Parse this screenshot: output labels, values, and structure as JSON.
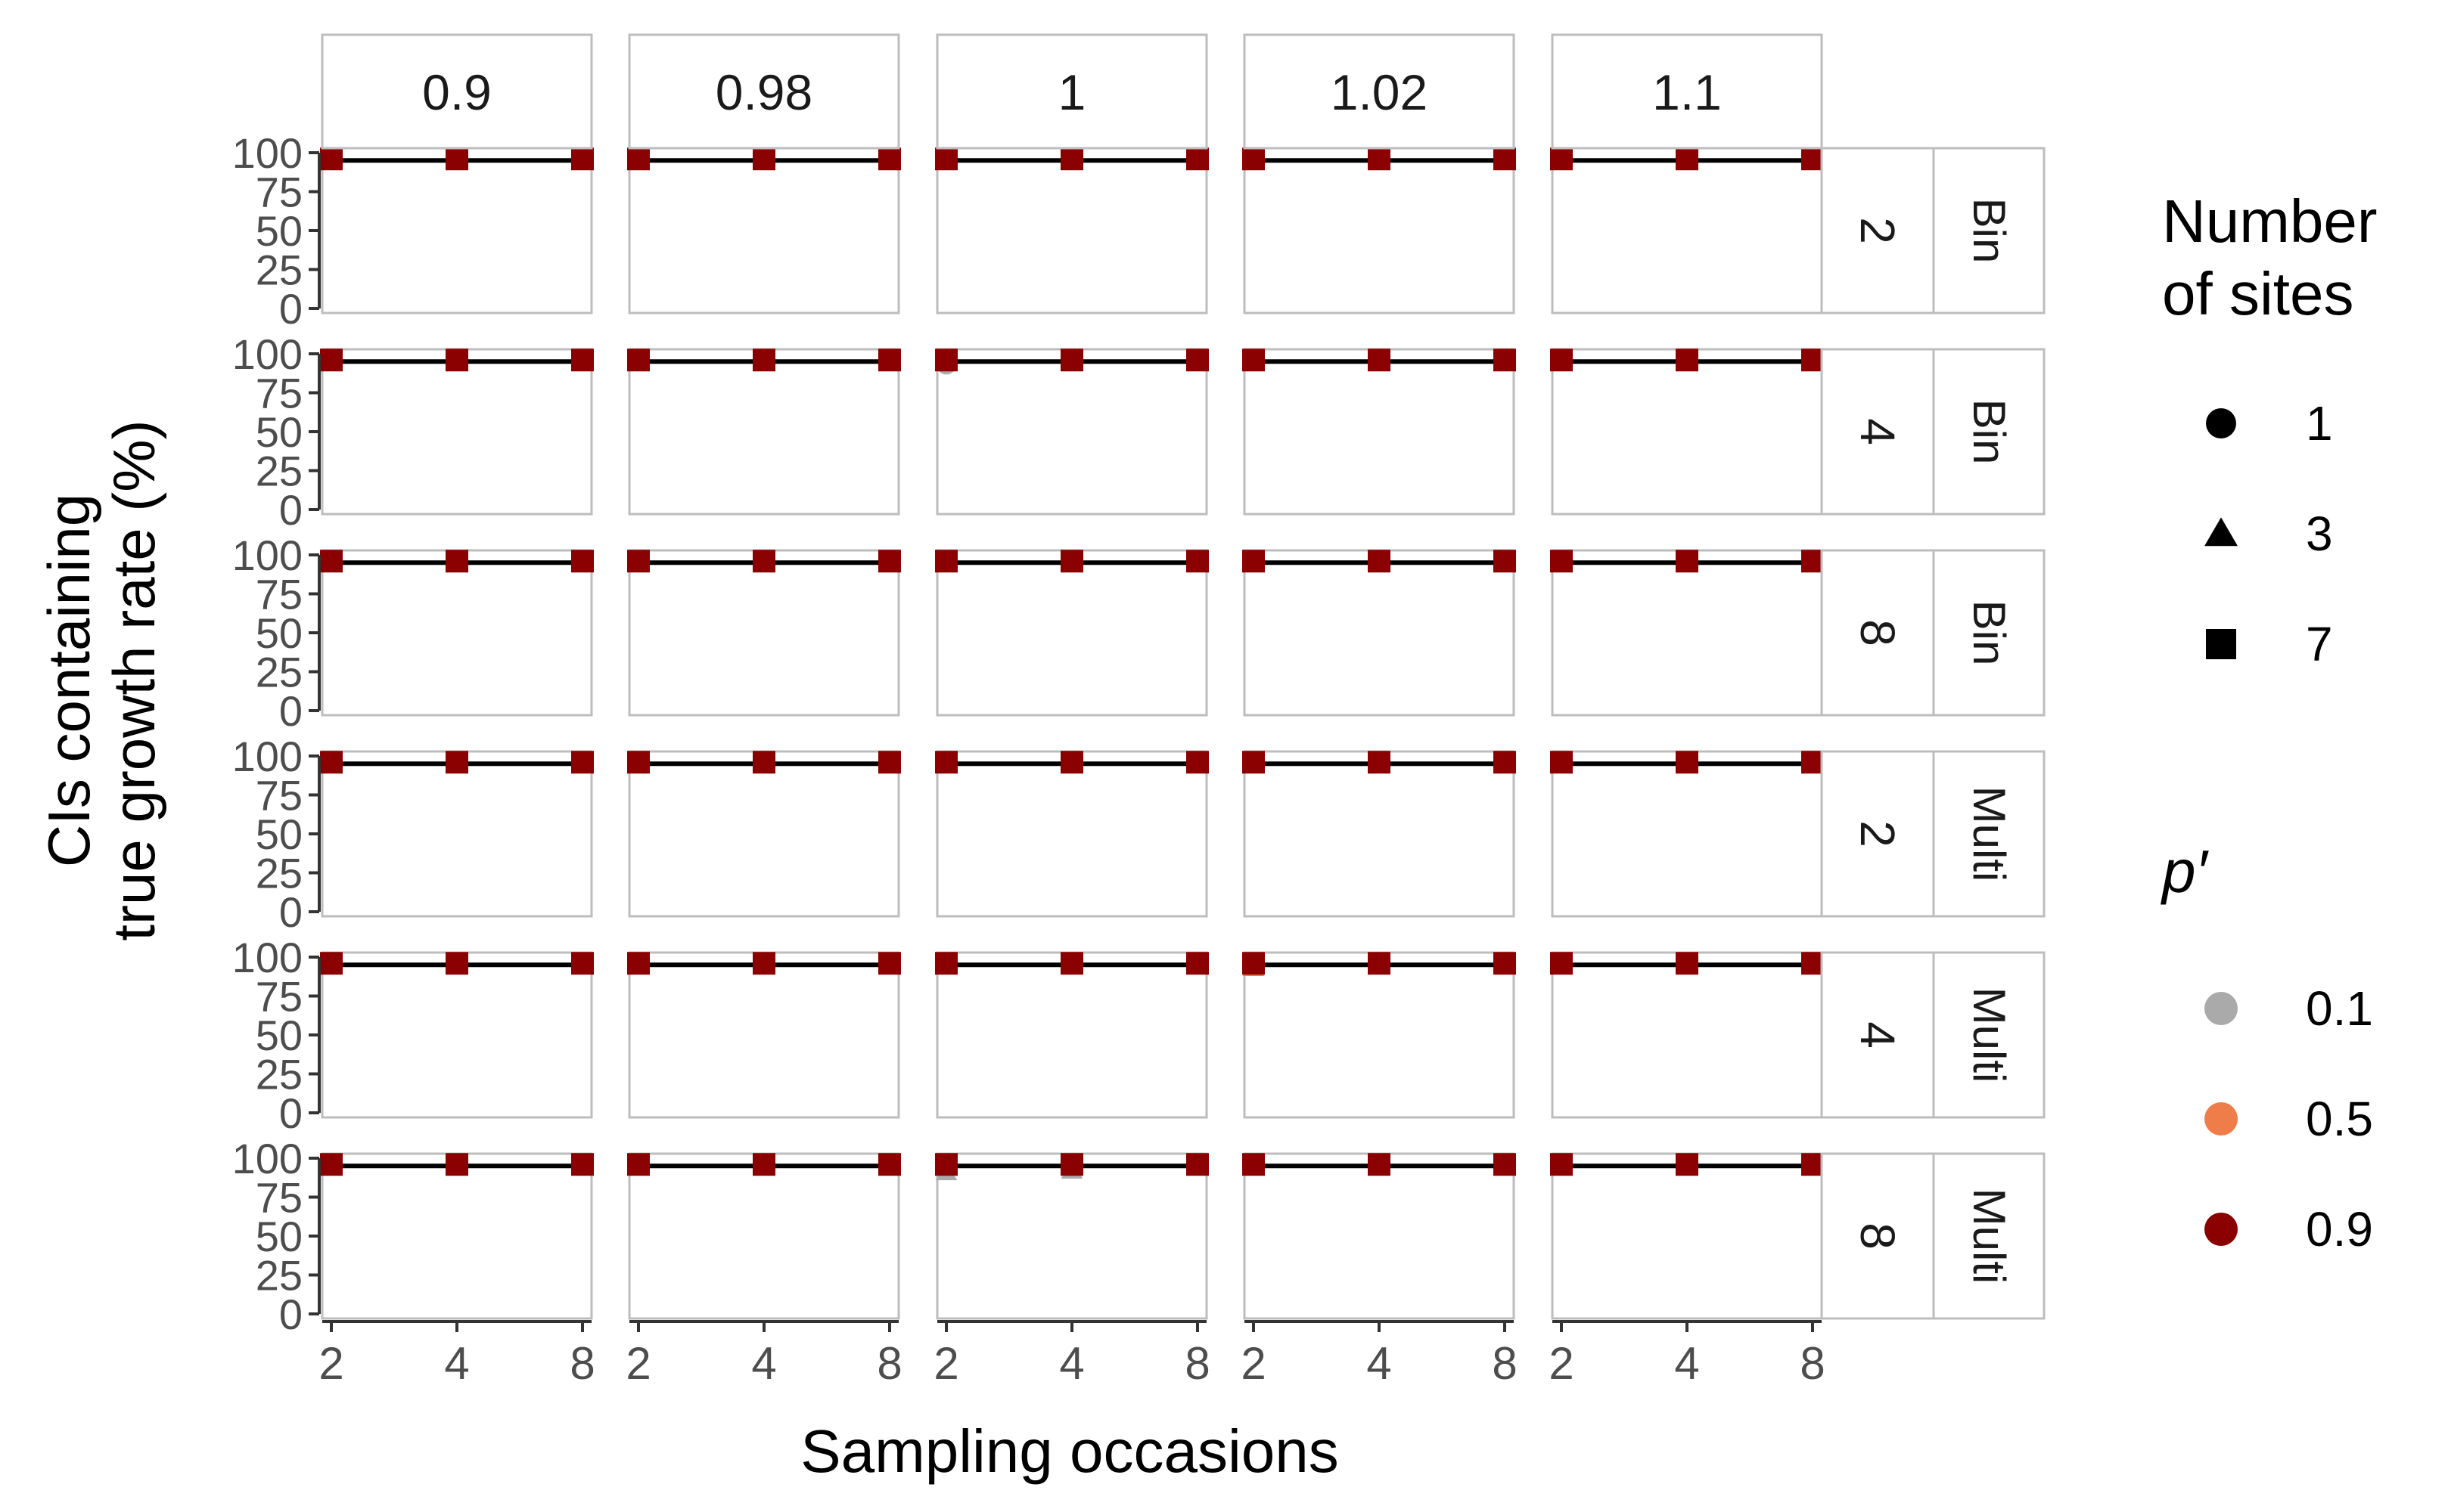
{
  "chart_data": {
    "type": "scatter",
    "title": "",
    "xlabel": "Sampling occasions",
    "ylabel_lines": [
      "CIs containing",
      "true growth rate (%)"
    ],
    "x_ticks": [
      2,
      4,
      8
    ],
    "y_ticks": [
      0,
      25,
      50,
      75,
      100
    ],
    "ylim": [
      0,
      100
    ],
    "x_scale": "log2",
    "reference_line": 95,
    "columns": [
      "0.9",
      "0.98",
      "1",
      "1.02",
      "1.1"
    ],
    "rows": [
      {
        "label_a": "2",
        "label_b": "Bin"
      },
      {
        "label_a": "4",
        "label_b": "Bin"
      },
      {
        "label_a": "8",
        "label_b": "Bin"
      },
      {
        "label_a": "2",
        "label_b": "Multi"
      },
      {
        "label_a": "4",
        "label_b": "Multi"
      },
      {
        "label_a": "8",
        "label_b": "Multi"
      }
    ],
    "legend_placement": "right",
    "legend_shape": {
      "title_lines": [
        "Number",
        "of sites"
      ],
      "items": [
        {
          "label": "1",
          "shape": "circle"
        },
        {
          "label": "3",
          "shape": "triangle"
        },
        {
          "label": "7",
          "shape": "square"
        }
      ]
    },
    "legend_color": {
      "title": "p′",
      "items": [
        {
          "label": "0.1",
          "color": "#aaaaaa"
        },
        {
          "label": "0.5",
          "color": "#ef7d4a"
        },
        {
          "label": "0.9",
          "color": "#8b0000"
        }
      ]
    },
    "default_value": 96,
    "outliers": [
      {
        "row": 1,
        "col": 2,
        "x": 2,
        "y": 93,
        "shape": "circle",
        "pprime": "0.1"
      },
      {
        "row": 1,
        "col": 1,
        "x": 2,
        "y": 95,
        "shape": "triangle",
        "pprime": "0.1"
      },
      {
        "row": 1,
        "col": 3,
        "x": 2,
        "y": 95,
        "shape": "triangle",
        "pprime": "0.1"
      },
      {
        "row": 1,
        "col": 4,
        "x": 2,
        "y": 95,
        "shape": "triangle",
        "pprime": "0.1"
      },
      {
        "row": 2,
        "col": 1,
        "x": 8,
        "y": 94,
        "shape": "triangle",
        "pprime": "0.1"
      },
      {
        "row": 2,
        "col": 2,
        "x": 4,
        "y": 94,
        "shape": "triangle",
        "pprime": "0.1"
      },
      {
        "row": 2,
        "col": 3,
        "x": 8,
        "y": 94,
        "shape": "triangle",
        "pprime": "0.1"
      },
      {
        "row": 4,
        "col": 0,
        "x": 2,
        "y": 95,
        "shape": "triangle",
        "pprime": "0.1"
      },
      {
        "row": 4,
        "col": 1,
        "x": 2,
        "y": 94,
        "shape": "triangle",
        "pprime": "0.1"
      },
      {
        "row": 4,
        "col": 2,
        "x": 2,
        "y": 94,
        "shape": "triangle",
        "pprime": "0.1"
      },
      {
        "row": 4,
        "col": 3,
        "x": 2,
        "y": 93,
        "shape": "triangle",
        "pprime": "0.5"
      },
      {
        "row": 4,
        "col": 4,
        "x": 2,
        "y": 94,
        "shape": "triangle",
        "pprime": "0.1"
      },
      {
        "row": 5,
        "col": 2,
        "x": 2,
        "y": 91,
        "shape": "triangle",
        "pprime": "0.1"
      },
      {
        "row": 5,
        "col": 2,
        "x": 4,
        "y": 92,
        "shape": "triangle",
        "pprime": "0.1"
      },
      {
        "row": 5,
        "col": 4,
        "x": 2,
        "y": 94,
        "shape": "triangle",
        "pprime": "0.1"
      }
    ]
  }
}
